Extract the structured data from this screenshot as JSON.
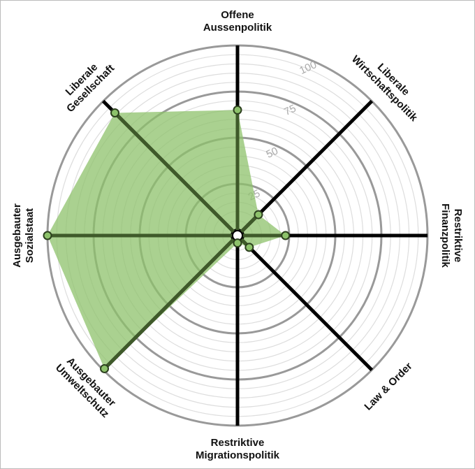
{
  "chart_data": {
    "type": "radar",
    "categories": [
      "Offene\nAussenpolitik",
      "Liberale\nWirtschaftspolitik",
      "Restriktive\nFinanzpolitik",
      "Law & Order",
      "Restriktive\nMigrationspolitik",
      "Ausgebauter\nUmweltschutz",
      "Ausgebauter\nSozialstaat",
      "Liberale\nGesellschaft"
    ],
    "series": [
      {
        "values": [
          65,
          13,
          23,
          6,
          1,
          99,
          100,
          91
        ],
        "color": "#8dc26b"
      }
    ],
    "rlim": [
      0,
      100
    ],
    "rticks": [
      25,
      50,
      75,
      100
    ],
    "minor_step": 5
  }
}
